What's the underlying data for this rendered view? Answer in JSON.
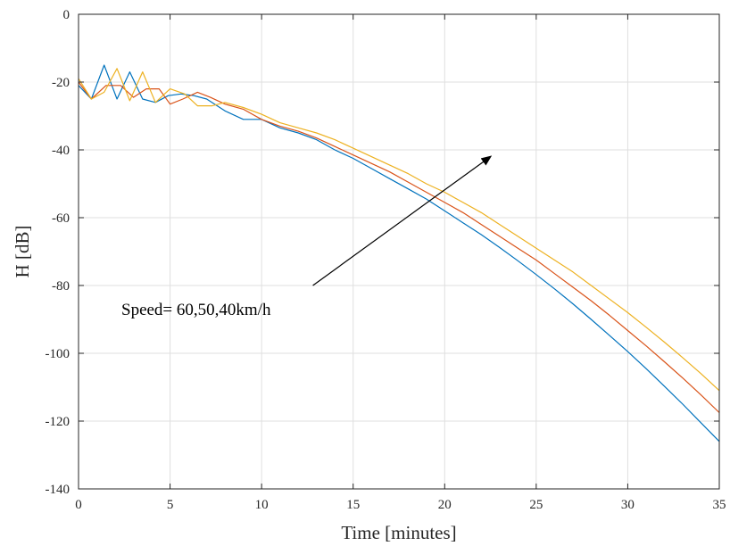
{
  "chart_data": {
    "type": "line",
    "xlabel": "Time [minutes]",
    "ylabel": "H [dB]",
    "xlim": [
      0,
      35
    ],
    "ylim": [
      -140,
      0
    ],
    "xticks": [
      0,
      5,
      10,
      15,
      20,
      25,
      30,
      35
    ],
    "yticks": [
      0,
      -20,
      -40,
      -60,
      -80,
      -100,
      -120,
      -140
    ],
    "xtick_labels": [
      "0",
      "5",
      "10",
      "15",
      "20",
      "25",
      "30",
      "35"
    ],
    "ytick_labels": [
      "0",
      "-20",
      "-40",
      "-60",
      "-80",
      "-100",
      "-120",
      "-140"
    ],
    "grid": true,
    "series": [
      {
        "color": "#0072BD",
        "x": [
          0,
          0.7,
          1.4,
          2.1,
          2.8,
          3.5,
          4.2,
          4.9,
          5.6,
          6.3,
          7,
          8,
          9,
          10,
          11,
          12,
          13,
          14,
          15,
          16,
          17,
          18,
          19,
          20,
          21,
          22,
          23,
          24,
          25,
          26,
          27,
          28,
          29,
          30,
          31,
          32,
          33,
          34,
          35
        ],
        "values": [
          -21,
          -25,
          -15,
          -25,
          -17,
          -25,
          -26,
          -24,
          -23.5,
          -24,
          -25,
          -28.5,
          -31,
          -31,
          -33.5,
          -35,
          -37,
          -40,
          -42.5,
          -45.5,
          -48.5,
          -51.5,
          -54.5,
          -58,
          -61.5,
          -65,
          -68.8,
          -72.7,
          -76.8,
          -81,
          -85.4,
          -90,
          -94.7,
          -99.5,
          -104.5,
          -109.7,
          -115,
          -120.5,
          -126
        ]
      },
      {
        "color": "#D95319",
        "x": [
          0,
          0.7,
          1.5,
          2.3,
          3,
          3.7,
          4.4,
          5,
          5.7,
          6.5,
          7.2,
          8,
          9,
          10,
          11,
          12,
          13,
          14,
          15,
          16,
          17,
          18,
          19,
          20,
          21,
          22,
          23,
          24,
          25,
          26,
          27,
          28,
          29,
          30,
          31,
          32,
          33,
          34,
          35
        ],
        "values": [
          -20,
          -25,
          -21,
          -21,
          -24.5,
          -22,
          -22,
          -26.5,
          -25,
          -23,
          -24.5,
          -26.5,
          -28,
          -31,
          -33,
          -34.5,
          -36.5,
          -39,
          -41.5,
          -44,
          -46.5,
          -49.5,
          -52.5,
          -55.5,
          -58.5,
          -62,
          -65.5,
          -69,
          -72.5,
          -76.5,
          -80.5,
          -84.5,
          -88.8,
          -93.3,
          -97.8,
          -102.5,
          -107.3,
          -112.3,
          -117.5
        ]
      },
      {
        "color": "#EDB120",
        "x": [
          0,
          0.7,
          1.4,
          2.1,
          2.8,
          3.5,
          4.2,
          5,
          5.8,
          6.5,
          7.3,
          8,
          9,
          10,
          11,
          12,
          13,
          14,
          15,
          16,
          17,
          18,
          19,
          20,
          21,
          22,
          23,
          24,
          25,
          26,
          27,
          28,
          29,
          30,
          31,
          32,
          33,
          34,
          35
        ],
        "values": [
          -19,
          -25,
          -23,
          -16,
          -25.5,
          -17,
          -26,
          -22,
          -23.5,
          -27,
          -27,
          -26,
          -27.5,
          -29.5,
          -32,
          -33.5,
          -35,
          -37,
          -39.5,
          -42,
          -44.5,
          -47,
          -50,
          -52.5,
          -55.5,
          -58.5,
          -62,
          -65.5,
          -69,
          -72.5,
          -76,
          -80,
          -84,
          -88,
          -92.3,
          -96.7,
          -101.3,
          -106,
          -111
        ]
      }
    ],
    "annotation": {
      "text": "Speed= 60,50,40km/h",
      "arrow_from": [
        12.8,
        -80
      ],
      "arrow_to": [
        22.5,
        -42
      ]
    }
  }
}
